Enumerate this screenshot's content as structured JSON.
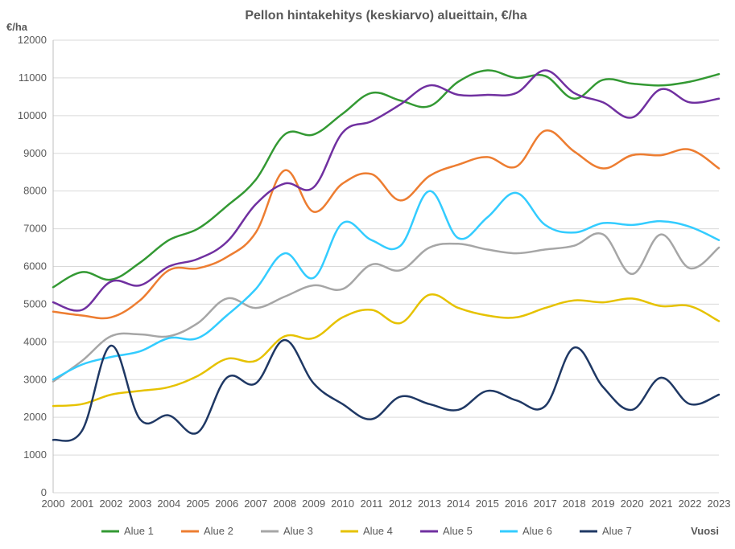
{
  "chart": {
    "type": "line",
    "title": "Pellon hintakehitys (keskiarvo) alueittain, €/ha",
    "title_fontsize": 16,
    "x_axis_label": "Vuosi",
    "y_axis_label": "€/ha",
    "axis_label_fontsize": 13,
    "tick_fontsize": 13,
    "background_color": "#ffffff",
    "grid_color": "#d9d9d9",
    "axis_color": "#bfbfbf",
    "text_color": "#595959",
    "xlim": [
      2000,
      2023
    ],
    "ylim": [
      0,
      12000
    ],
    "ytick_step": 1000,
    "xtick_step": 1,
    "line_width": 2.5,
    "categories": [
      2000,
      2001,
      2002,
      2003,
      2004,
      2005,
      2006,
      2007,
      2008,
      2009,
      2010,
      2011,
      2012,
      2013,
      2014,
      2015,
      2016,
      2017,
      2018,
      2019,
      2020,
      2021,
      2022,
      2023
    ],
    "series": [
      {
        "name": "Alue 1",
        "label": "Alue 1",
        "color": "#339933",
        "values": [
          5450,
          5850,
          5650,
          6100,
          6700,
          7000,
          7600,
          8300,
          9500,
          9500,
          10050,
          10600,
          10400,
          10250,
          10900,
          11200,
          11000,
          11050,
          10450,
          10950,
          10850,
          10800,
          10900,
          11100
        ]
      },
      {
        "name": "Alue 2",
        "label": "Alue 2",
        "color": "#ed7d31",
        "values": [
          4800,
          4700,
          4650,
          5100,
          5900,
          5950,
          6250,
          6900,
          8550,
          7450,
          8200,
          8450,
          7750,
          8400,
          8700,
          8900,
          8650,
          9600,
          9050,
          8600,
          8950,
          8950,
          9100,
          8600
        ]
      },
      {
        "name": "Alue 3",
        "label": "Alue 3",
        "color": "#a6a6a6",
        "values": [
          2950,
          3500,
          4150,
          4200,
          4150,
          4500,
          5150,
          4900,
          5200,
          5500,
          5400,
          6050,
          5900,
          6500,
          6600,
          6450,
          6350,
          6450,
          6550,
          6850,
          5800,
          6850,
          5950,
          6500
        ]
      },
      {
        "name": "Alue 4",
        "label": "Alue 4",
        "color": "#e6c200",
        "values": [
          2300,
          2350,
          2600,
          2700,
          2800,
          3100,
          3550,
          3500,
          4150,
          4100,
          4650,
          4850,
          4500,
          5250,
          4900,
          4700,
          4650,
          4900,
          5100,
          5050,
          5150,
          4950,
          4950,
          4550
        ]
      },
      {
        "name": "Alue 5",
        "label": "Alue 5",
        "color": "#7030a0",
        "values": [
          5050,
          4850,
          5600,
          5500,
          6000,
          6200,
          6650,
          7650,
          8200,
          8100,
          9550,
          9850,
          10300,
          10800,
          10550,
          10550,
          10600,
          11200,
          10600,
          10350,
          9950,
          10700,
          10350,
          10450
        ]
      },
      {
        "name": "Alue 6",
        "label": "Alue 6",
        "color": "#33ccff",
        "values": [
          3000,
          3400,
          3600,
          3750,
          4100,
          4100,
          4700,
          5400,
          6350,
          5700,
          7150,
          6700,
          6550,
          8000,
          6750,
          7300,
          7950,
          7100,
          6900,
          7150,
          7100,
          7200,
          7050,
          6700
        ]
      },
      {
        "name": "Alue 7",
        "label": "Alue 7",
        "color": "#1f3864",
        "values": [
          1400,
          1650,
          3900,
          1950,
          2050,
          1600,
          3050,
          2900,
          4050,
          2900,
          2350,
          1950,
          2550,
          2350,
          2200,
          2700,
          2450,
          2300,
          3850,
          2800,
          2200,
          3050,
          2350,
          2600
        ]
      }
    ],
    "legend_prefix": "—"
  }
}
